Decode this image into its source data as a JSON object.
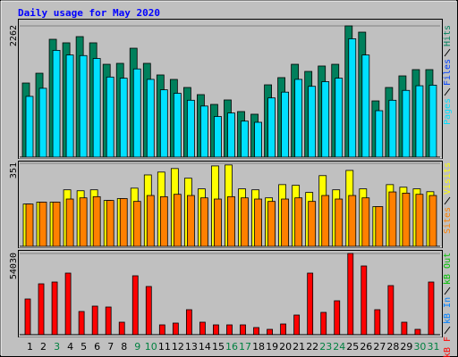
{
  "chart_data": [
    {
      "type": "bar",
      "title": "Daily usage for May 2020",
      "title_color": "#0000ff",
      "ylim": [
        0,
        2262
      ],
      "yticks": [
        2262
      ],
      "series": [
        {
          "name": "Hits",
          "color": "#00805c",
          "values": [
            1277,
            1446,
            2031,
            1970,
            2077,
            1970,
            1600,
            1616,
            1877,
            1616,
            1416,
            1339,
            1200,
            1077,
            908,
            985,
            785,
            739,
            1246,
            1370,
            1600,
            1477,
            1570,
            1600,
            2262,
            2154,
            969,
            1200,
            1400,
            1508,
            1508
          ]
        },
        {
          "name": "Files",
          "color": "#0040ff",
          "values": [
            640,
            700,
            1030,
            990,
            1040,
            980,
            800,
            810,
            940,
            810,
            710,
            670,
            600,
            540,
            450,
            490,
            390,
            370,
            620,
            690,
            800,
            740,
            780,
            800,
            1130,
            1080,
            480,
            600,
            700,
            750,
            750
          ]
        },
        {
          "name": "Pages",
          "color": "#00e0ff",
          "values": [
            1047,
            1186,
            1840,
            1760,
            1750,
            1700,
            1380,
            1360,
            1520,
            1340,
            1160,
            1100,
            980,
            880,
            700,
            760,
            620,
            600,
            1020,
            1120,
            1340,
            1220,
            1300,
            1360,
            2040,
            1760,
            800,
            980,
            1150,
            1230,
            1240
          ]
        }
      ]
    },
    {
      "type": "bar",
      "ylim": [
        0,
        351
      ],
      "yticks": [
        351
      ],
      "series": [
        {
          "name": "Visits",
          "color": "#ffff00",
          "values": [
            179,
            187,
            187,
            239,
            235,
            239,
            194,
            202,
            246,
            302,
            314,
            329,
            288,
            243,
            340,
            344,
            243,
            239,
            205,
            261,
            258,
            228,
            299,
            239,
            321,
            243,
            168,
            261,
            250,
            243,
            231
          ]
        },
        {
          "name": "Sites",
          "color": "#ff8000",
          "values": [
            179,
            187,
            187,
            200,
            205,
            210,
            194,
            202,
            190,
            215,
            210,
            220,
            215,
            205,
            200,
            210,
            205,
            200,
            190,
            200,
            205,
            190,
            215,
            200,
            215,
            205,
            168,
            230,
            225,
            220,
            215
          ]
        }
      ]
    },
    {
      "type": "bar",
      "ylim": [
        0,
        54030
      ],
      "yticks": [
        54030
      ],
      "categories": [
        "1",
        "2",
        "3",
        "4",
        "5",
        "6",
        "7",
        "8",
        "9",
        "10",
        "11",
        "12",
        "13",
        "14",
        "15",
        "16",
        "17",
        "18",
        "19",
        "20",
        "21",
        "22",
        "23",
        "24",
        "25",
        "26",
        "27",
        "28",
        "29",
        "30",
        "31"
      ],
      "category_colors": [
        "#000000",
        "#000000",
        "#008040",
        "#000000",
        "#000000",
        "#000000",
        "#000000",
        "#000000",
        "#008040",
        "#008040",
        "#000000",
        "#000000",
        "#000000",
        "#000000",
        "#000000",
        "#008040",
        "#008040",
        "#000000",
        "#000000",
        "#000000",
        "#000000",
        "#000000",
        "#008040",
        "#008040",
        "#000000",
        "#000000",
        "#000000",
        "#000000",
        "#000000",
        "#008040",
        "#008040"
      ],
      "series": [
        {
          "name": "kB F",
          "color": "#ff0000",
          "values": [
            23750,
            33843,
            35031,
            40968,
            15437,
            19000,
            18406,
            8312,
            39187,
            32062,
            6531,
            7718,
            16625,
            8312,
            6531,
            6531,
            6531,
            4750,
            3562,
            7125,
            13062,
            40968,
            14843,
            22562,
            54030,
            45718,
            16625,
            32656,
            8312,
            3562,
            35031
          ]
        }
      ],
      "extra_legend": [
        {
          "name": "kB In",
          "color": "#0080ff"
        },
        {
          "name": "kB Out",
          "color": "#00c000"
        }
      ]
    }
  ]
}
